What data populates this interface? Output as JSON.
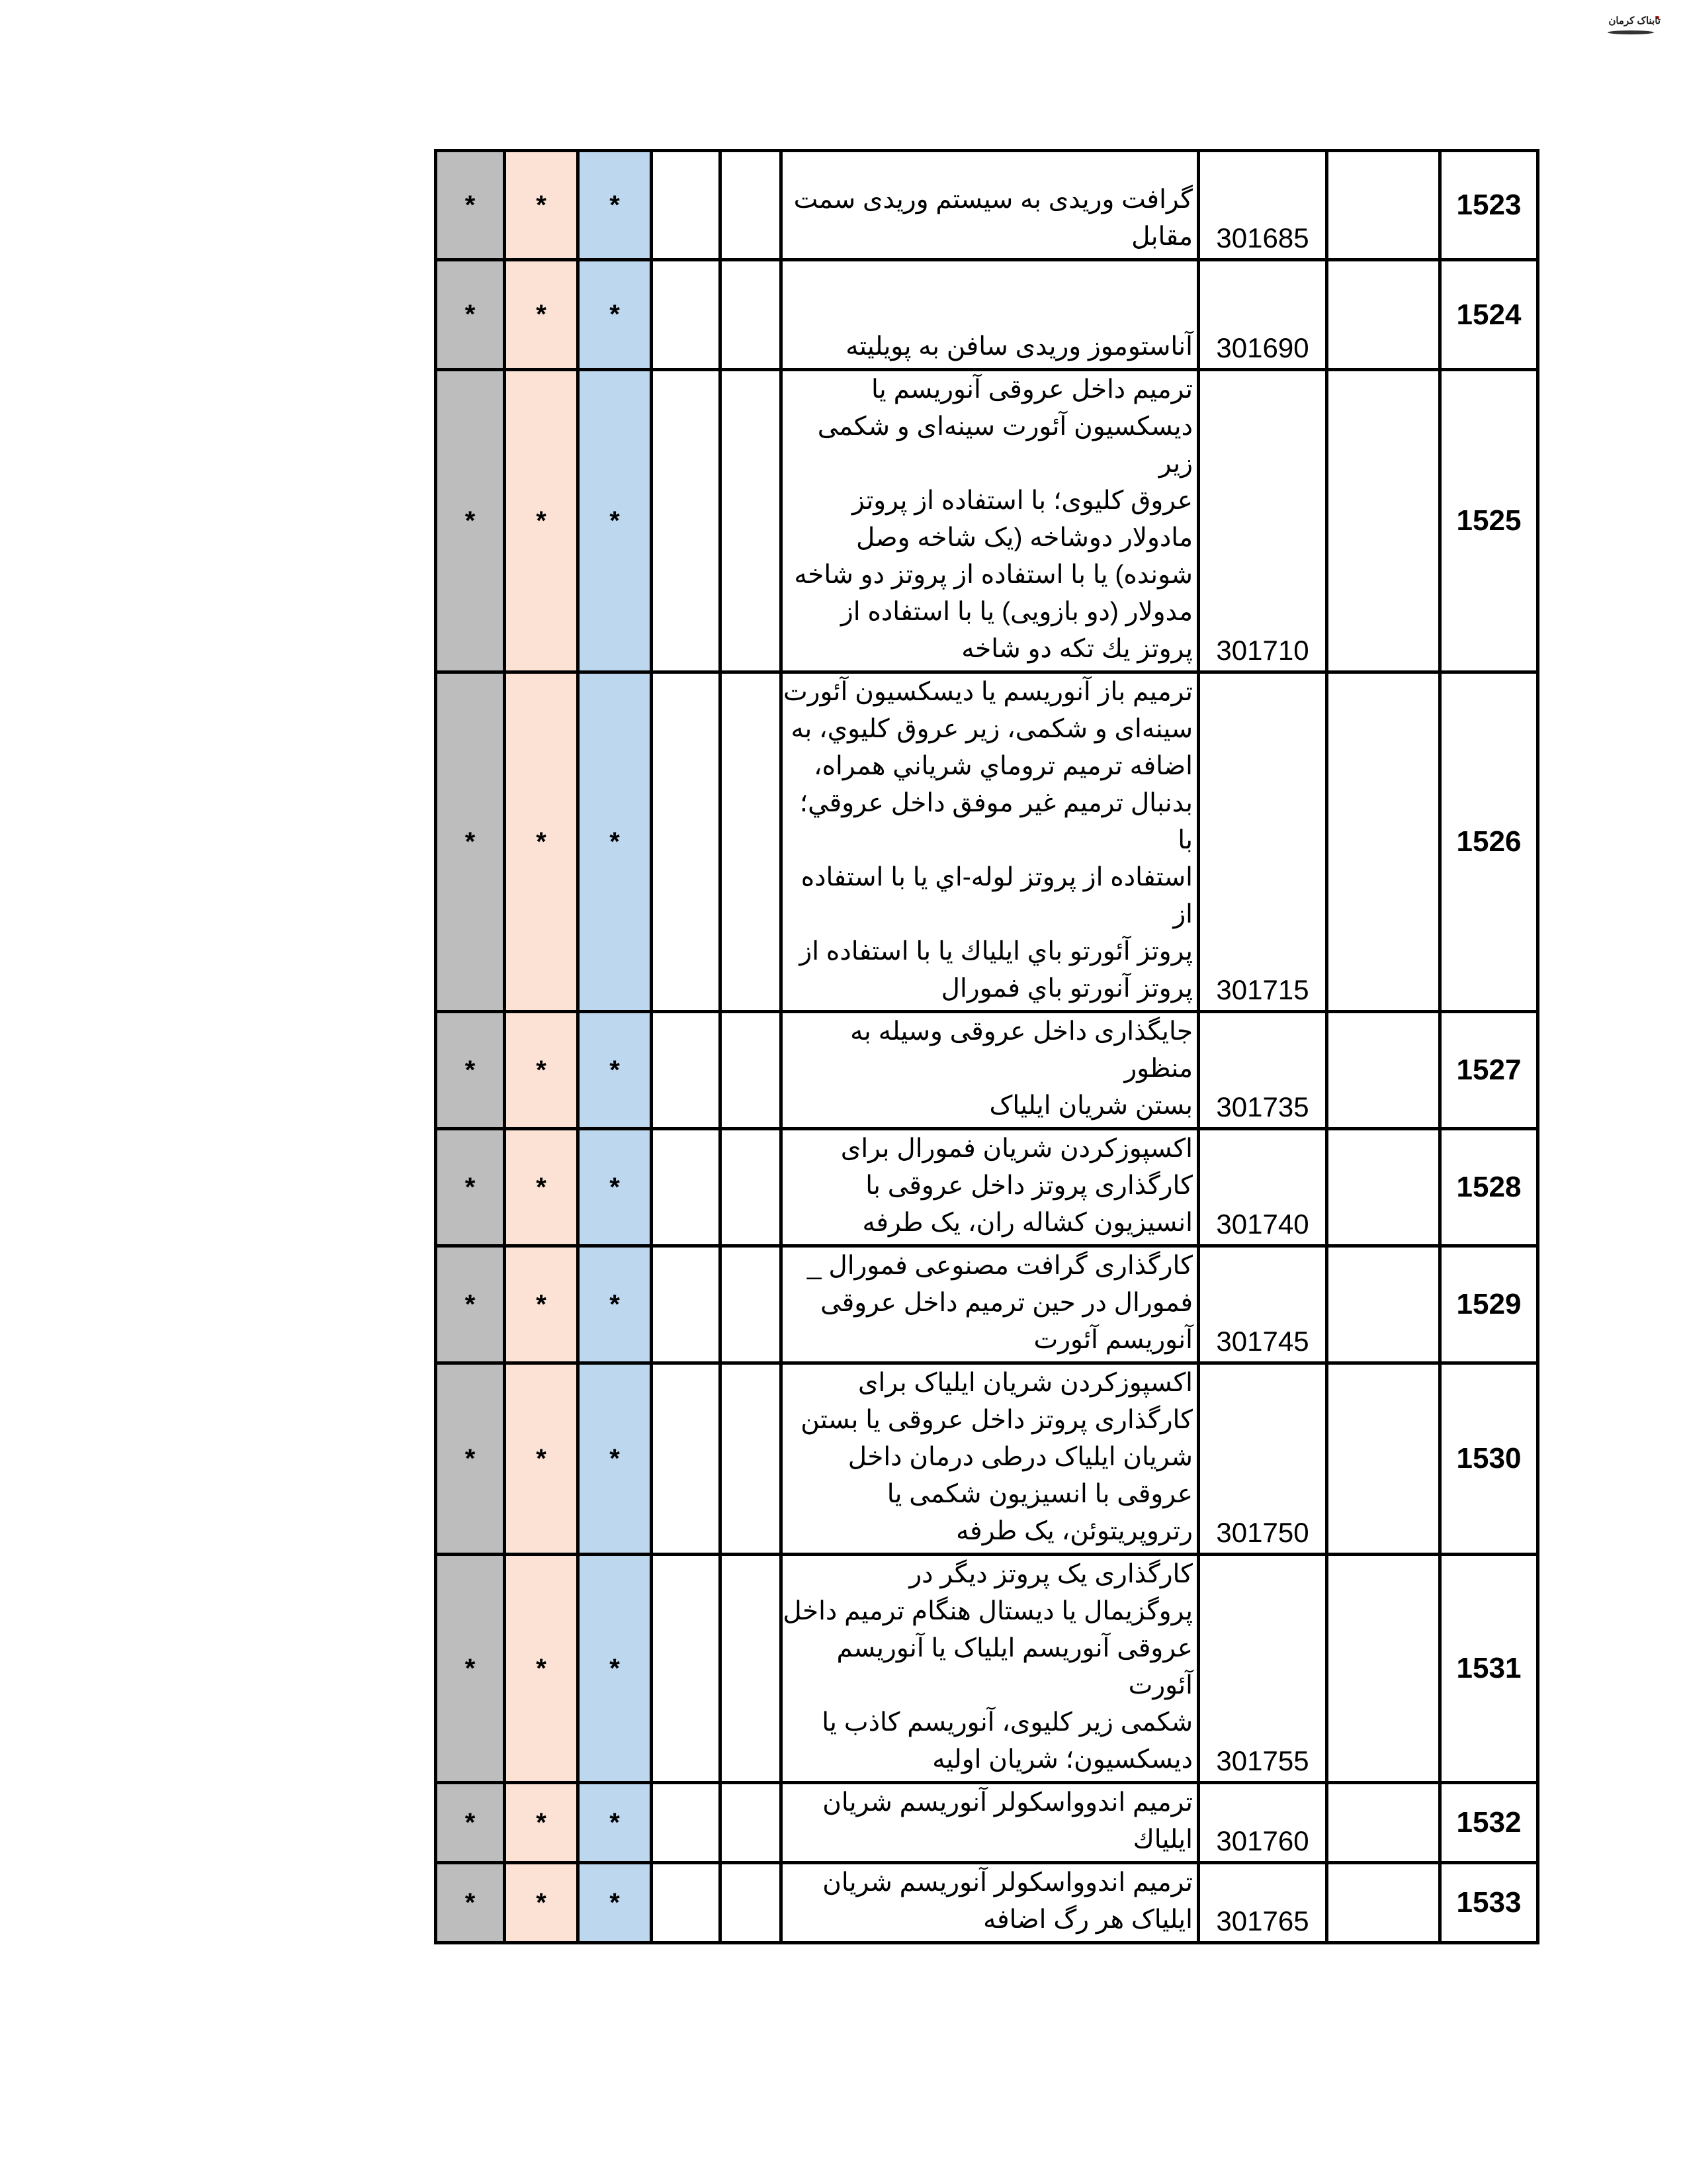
{
  "logo": {
    "text": "تابناک کرمان"
  },
  "colors": {
    "gray": "#bdbdbd",
    "peach": "#fbe2d5",
    "blue": "#bdd7ee"
  },
  "rows": [
    {
      "num": "1523",
      "code": "301685",
      "marks": [
        "*",
        "*",
        "*"
      ],
      "lines": [
        "گرافت وریدی به سیستم وریدی سمت",
        "مقابل"
      ]
    },
    {
      "num": "1524",
      "code": "301690",
      "marks": [
        "*",
        "*",
        "*"
      ],
      "lines": [
        "آناستوموز وریدی سافن به پویلیته"
      ]
    },
    {
      "num": "1525",
      "code": "301710",
      "marks": [
        "*",
        "*",
        "*"
      ],
      "lines": [
        "ترمیم داخل عروقی آنوریسم یا",
        "دیسکسیون آئورت سینه‌ای و شکمی زیر",
        "عروق کلیوی؛ با استفاده از پروتز",
        "مادولار دوشاخه (یک شاخه وصل",
        "شونده) یا با استفاده از پروتز دو شاخه",
        "مدولار (دو بازویی) یا با استفاده از",
        "پروتز يك تكه دو شاخه"
      ]
    },
    {
      "num": "1526",
      "code": "301715",
      "marks": [
        "*",
        "*",
        "*"
      ],
      "lines": [
        "ترمیم باز آنوریسم یا دیسکسیون آئورت",
        "سینه‌ای و شکمی، زیر عروق کليوي، به",
        "اضافه ترمیم تروماي شرياني همراه،",
        "بدنبال ترمیم غیر موفق داخل عروقي؛ با",
        "استفاده از پروتز لوله-اي يا با استفاده از",
        "پروتز آئورتو باي ايلياك يا با استفاده از",
        "پروتز آنورتو باي فمورال"
      ]
    },
    {
      "num": "1527",
      "code": "301735",
      "marks": [
        "*",
        "*",
        "*"
      ],
      "lines": [
        "جایگذاری داخل عروقی وسیله به منظور",
        "بستن شریان ایلیاک"
      ]
    },
    {
      "num": "1528",
      "code": "301740",
      "marks": [
        "*",
        "*",
        "*"
      ],
      "lines": [
        "اکسپوزکردن شریان فمورال برای",
        "کارگذاری پروتز داخل عروقی با",
        "انسیزیون کشاله ران، یک طرفه"
      ]
    },
    {
      "num": "1529",
      "code": "301745",
      "marks": [
        "*",
        "*",
        "*"
      ],
      "lines": [
        "کارگذاری گرافت مصنوعی فمورال _",
        "فمورال در حین ترمیم داخل عروقی",
        "آنوریسم آئورت"
      ]
    },
    {
      "num": "1530",
      "code": "301750",
      "marks": [
        "*",
        "*",
        "*"
      ],
      "lines": [
        "اکسپوزکردن شریان ایلیاک برای",
        "کارگذاری پروتز داخل عروقی یا بستن",
        "شریان ایلیاک درطی درمان داخل",
        "عروقی با انسیزیون شکمی یا",
        "رتروپریتوئن، یک طرفه"
      ]
    },
    {
      "num": "1531",
      "code": "301755",
      "marks": [
        "*",
        "*",
        "*"
      ],
      "lines": [
        "کارگذاری یک پروتز دیگر در",
        "پروگزیمال یا دیستال هنگام ترمیم داخل",
        "عروقی آنوریسم ایلیاک یا آنوریسم آئورت",
        "شکمی زیر کلیوی، آنوریسم کاذب یا",
        "دیسکسیون؛ شریان اولیه"
      ]
    },
    {
      "num": "1532",
      "code": "301760",
      "marks": [
        "*",
        "*",
        "*"
      ],
      "lines": [
        "ترمیم اندوواسکولر آنوریسم شریان ایلیاك"
      ]
    },
    {
      "num": "1533",
      "code": "301765",
      "marks": [
        "*",
        "*",
        "*"
      ],
      "lines": [
        "ترمیم اندوواسکولر آنوریسم شریان",
        "ایلیاک هر رگ اضافه"
      ]
    }
  ]
}
